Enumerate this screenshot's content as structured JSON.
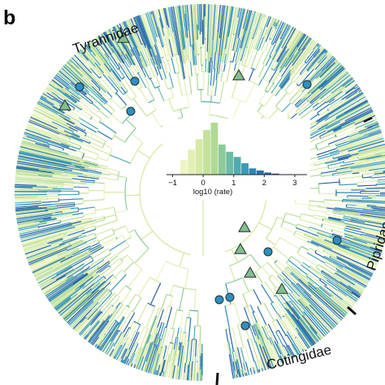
{
  "panel_letter": "b",
  "clades": [
    {
      "name": "Tyrannidae"
    },
    {
      "name": "Cotingidae"
    },
    {
      "name": "Pipridae"
    }
  ],
  "chart_data": {
    "type": "bar",
    "xlabel": "log10 (rate)",
    "x_ticks": [
      "−1",
      "0",
      "1",
      "2",
      "3"
    ],
    "x_tick_values": [
      -1,
      0,
      1,
      2,
      3
    ],
    "xlim": [
      -1.2,
      3.4
    ],
    "bin_edges": [
      -0.75,
      -0.5,
      -0.25,
      0,
      0.25,
      0.5,
      0.75,
      1,
      1.25,
      1.5,
      1.75,
      2,
      2.25,
      2.5
    ],
    "values": [
      14,
      24,
      34,
      43,
      50,
      29,
      22,
      17,
      11,
      6,
      4,
      2,
      1
    ],
    "palette": [
      "#eef5c4",
      "#e2efb5",
      "#d6eaa6",
      "#c4e29c",
      "#b0d996",
      "#8cca9c",
      "#6cbca6",
      "#50acb0",
      "#3b9bb7",
      "#2d86b4",
      "#2a70ac",
      "#2a5fa3",
      "#284c97"
    ],
    "marker_colors": {
      "triangle": "#82be8e",
      "circle": "#2f8fbf",
      "outline": "#1e2f2a"
    }
  }
}
